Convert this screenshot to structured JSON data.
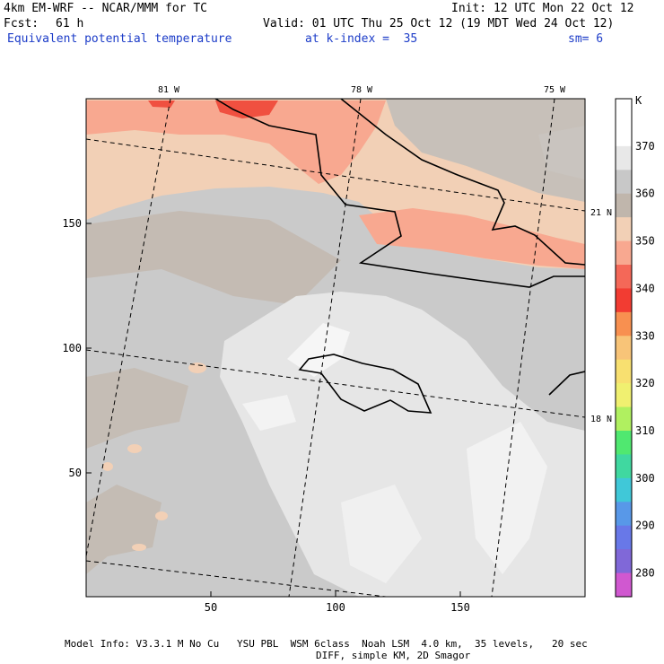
{
  "header": {
    "model": "4km EM-WRF -- NCAR/MMM for TC",
    "init": "Init: 12 UTC Mon 22 Oct 12",
    "fcst_label": "Fcst:",
    "fcst_value": "61 h",
    "valid": "Valid: 01 UTC Thu 25 Oct 12 (19 MDT Wed 24 Oct 12)",
    "field": "Equivalent potential temperature",
    "level": "at k-index =  35",
    "smoothing": "sm= 6"
  },
  "map": {
    "grid_x_ticks": [
      "50",
      "100",
      "150"
    ],
    "grid_y_ticks": [
      "150",
      "100",
      "50"
    ],
    "longitude_labels": [
      "81 W",
      "78 W",
      "75 W"
    ],
    "latitude_labels": [
      "21 N",
      "18 N"
    ]
  },
  "colorbar": {
    "unit": "K",
    "levels": [
      {
        "label": "",
        "color": "#ffffff"
      },
      {
        "label": "370",
        "color": "#ffffff"
      },
      {
        "label": "",
        "color": "#e8e8e8"
      },
      {
        "label": "360",
        "color": "#c8c8c8"
      },
      {
        "label": "",
        "color": "#c0b6ac"
      },
      {
        "label": "350",
        "color": "#f2d0b6"
      },
      {
        "label": "",
        "color": "#f8a890"
      },
      {
        "label": "340",
        "color": "#f46858"
      },
      {
        "label": "",
        "color": "#f23c32"
      },
      {
        "label": "330",
        "color": "#f89050"
      },
      {
        "label": "",
        "color": "#f8c478"
      },
      {
        "label": "320",
        "color": "#f8e070"
      },
      {
        "label": "",
        "color": "#f0f070"
      },
      {
        "label": "310",
        "color": "#b0f060"
      },
      {
        "label": "",
        "color": "#50e870"
      },
      {
        "label": "300",
        "color": "#40d8a0"
      },
      {
        "label": "",
        "color": "#40c8d8"
      },
      {
        "label": "290",
        "color": "#5898e8"
      },
      {
        "label": "",
        "color": "#6878e8"
      },
      {
        "label": "280",
        "color": "#8068d8"
      },
      {
        "label": "",
        "color": "#d058d0"
      }
    ]
  },
  "footer": {
    "line1": "Model Info: V3.3.1 M No Cu   YSU PBL  WSM 6class  Noah LSM  4.0 km,  35 levels,   20 sec",
    "line2": "DIFF, simple KM, 2D Smagor"
  }
}
